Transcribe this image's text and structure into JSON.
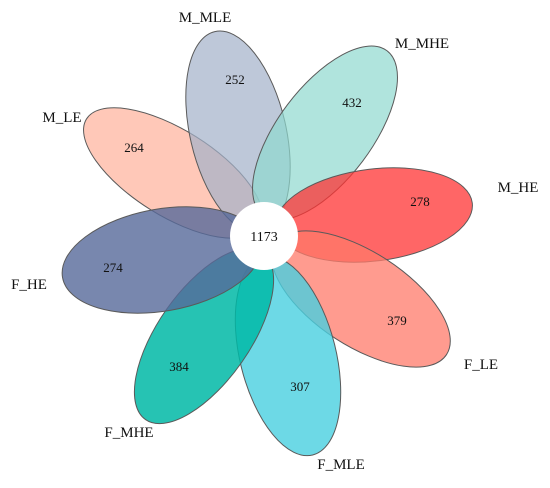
{
  "diagram": {
    "center_count": "1173",
    "sets": [
      {
        "label": "M_MLE",
        "count": "252",
        "color": "#a3b0c9"
      },
      {
        "label": "M_MHE",
        "count": "432",
        "color": "#8fd8ce"
      },
      {
        "label": "M_HE",
        "count": "278",
        "color": "#ff3333"
      },
      {
        "label": "F_LE",
        "count": "379",
        "color": "#ff7a6a"
      },
      {
        "label": "F_MLE",
        "count": "307",
        "color": "#48cfe0"
      },
      {
        "label": "F_MHE",
        "count": "384",
        "color": "#00b8a6"
      },
      {
        "label": "F_HE",
        "count": "274",
        "color": "#56699a"
      },
      {
        "label": "M_LE",
        "count": "264",
        "color": "#ffb09a"
      }
    ]
  }
}
